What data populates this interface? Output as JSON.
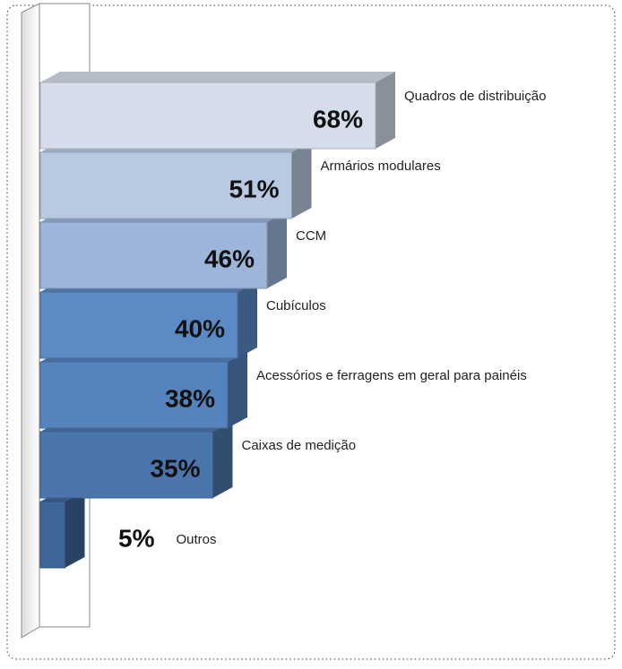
{
  "chart_data": {
    "type": "bar",
    "orientation": "horizontal",
    "categories": [
      "Quadros de distribuição",
      "Armários modulares",
      "CCM",
      "Cubículos",
      "Acessórios e ferragens em geral para painéis",
      "Caixas de medição",
      "Outros"
    ],
    "values": [
      68,
      51,
      46,
      40,
      38,
      35,
      5
    ],
    "value_labels": [
      "68%",
      "51%",
      "46%",
      "40%",
      "38%",
      "35%",
      "5%"
    ],
    "colors": [
      "#d5dcea",
      "#b9c9e2",
      "#9db5da",
      "#5b8ac4",
      "#5583bd",
      "#4b76ad",
      "#3e6699"
    ]
  }
}
